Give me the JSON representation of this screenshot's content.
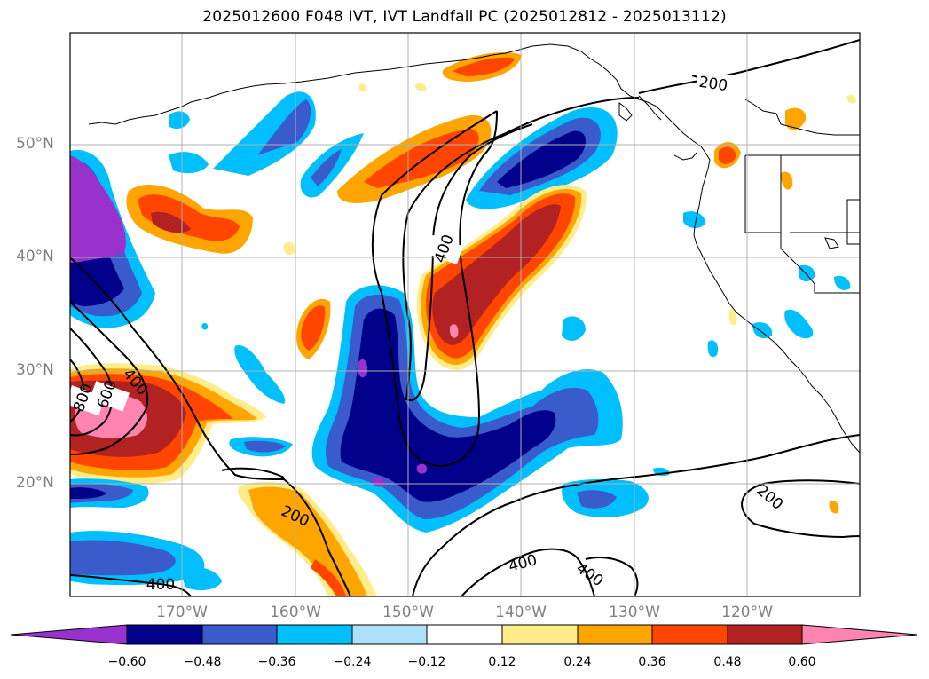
{
  "title": "2025012600 F048 IVT, IVT Landfall PC (2025012812 - 2025013112)",
  "lat_labels": [
    "50°N",
    "40°N",
    "30°N",
    "20°N"
  ],
  "lon_labels": [
    "170°W",
    "160°W",
    "150°W",
    "140°W",
    "130°W",
    "120°W"
  ],
  "contour_labels": [
    "200",
    "400",
    "800",
    "600",
    "400",
    "200",
    "200",
    "400",
    "400",
    "400"
  ],
  "colorbar": {
    "ticks": [
      "−0.60",
      "−0.48",
      "−0.36",
      "−0.24",
      "−0.12",
      "0.12",
      "0.24",
      "0.36",
      "0.48",
      "0.60"
    ],
    "colors": [
      "#9932CC",
      "#00008B",
      "#3A5BCC",
      "#00BFFF",
      "#ADE1FA",
      "#FFFFFF",
      "#FFEC8B",
      "#FFA500",
      "#FF4500",
      "#B22222",
      "#FF85B0"
    ]
  }
}
